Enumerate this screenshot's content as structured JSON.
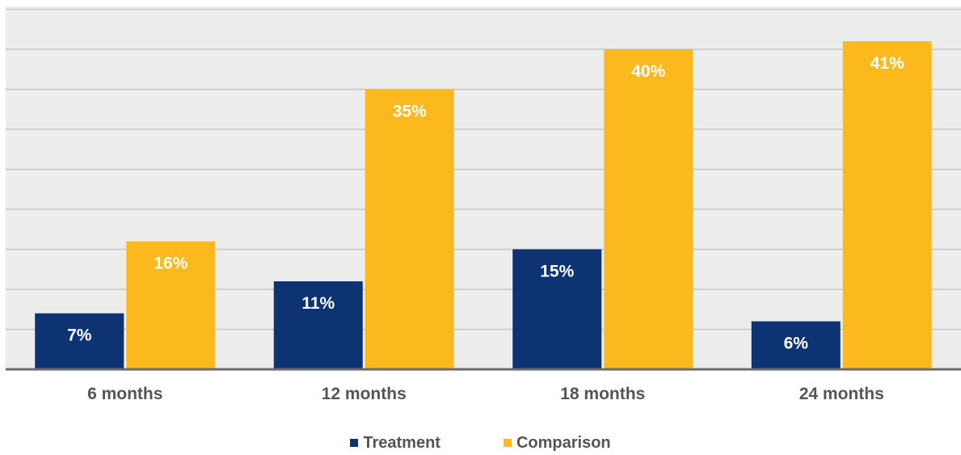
{
  "chart_data": {
    "type": "bar",
    "categories": [
      "6 months",
      "12 months",
      "18 months",
      "24 months"
    ],
    "series": [
      {
        "name": "Treatment",
        "values": [
          7,
          11,
          15,
          6
        ],
        "labels": [
          "7%",
          "11%",
          "15%",
          "6%"
        ],
        "color": "#0e3373"
      },
      {
        "name": "Comparison",
        "values": [
          16,
          35,
          40,
          41
        ],
        "labels": [
          "16%",
          "35%",
          "40%",
          "41%"
        ],
        "color": "#fbb91e"
      }
    ],
    "title": "",
    "xlabel": "",
    "ylabel": "",
    "ylim": [
      0,
      45
    ],
    "grid": true,
    "legend_position": "bottom"
  },
  "colors": {
    "plot_background": "#ededed",
    "gridline": "#c6c6c6",
    "axis": "#6b6b6b",
    "data_label": "#ffffff",
    "tick_label": "#555555"
  }
}
